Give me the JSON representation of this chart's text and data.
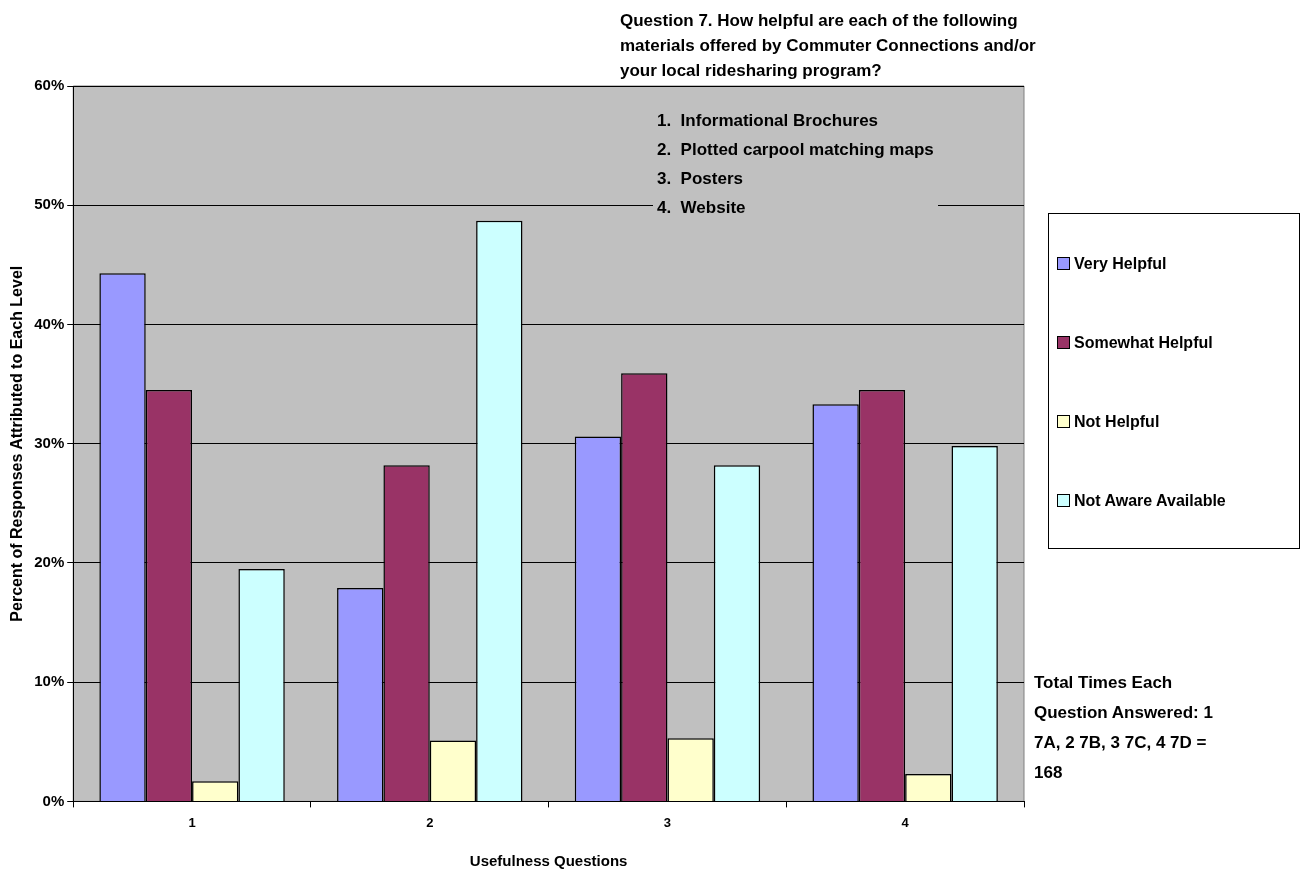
{
  "chart_data": {
    "type": "bar",
    "title": "Question 7.  How helpful are each of the following materials offered by Commuter Connections and/or your local ridesharing program?",
    "subtitle": "1.  Informational Brochures\n2.  Plotted carpool matching maps\n3.  Posters\n4.  Website",
    "xlabel": "Usefulness Questions",
    "ylabel": "Percent of Responses Attributed to Each Level",
    "categories": [
      "1",
      "2",
      "3",
      "4"
    ],
    "series": [
      {
        "name": "Very Helpful",
        "color": "#9999ff",
        "values": [
          44.3,
          17.9,
          30.6,
          33.3
        ]
      },
      {
        "name": "Somewhat Helpful",
        "color": "#993366",
        "values": [
          34.5,
          28.2,
          35.9,
          34.5
        ]
      },
      {
        "name": "Not Helpful",
        "color": "#ffffcc",
        "values": [
          1.7,
          5.1,
          5.3,
          2.3
        ]
      },
      {
        "name": "Not Aware Available",
        "color": "#ccffff",
        "values": [
          19.5,
          48.7,
          28.2,
          29.8
        ]
      }
    ],
    "ylim": [
      0,
      60
    ],
    "yticks": [
      {
        "value": 0,
        "label": "0%"
      },
      {
        "value": 10,
        "label": "10%"
      },
      {
        "value": 20,
        "label": "20%"
      },
      {
        "value": 30,
        "label": "30%"
      },
      {
        "value": 40,
        "label": "40%"
      },
      {
        "value": 50,
        "label": "50%"
      },
      {
        "value": 60,
        "label": "60%"
      }
    ],
    "grid": "y",
    "legend": "right",
    "annotations": [
      "Total Times Each Question Answered: 1 7A, 2 7B, 3 7C, 4 7D = 168"
    ]
  }
}
